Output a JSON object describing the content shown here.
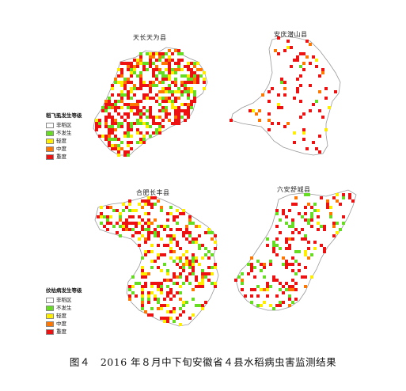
{
  "figure_caption": "图４　2016 年８月中下旬安徽省４县水稻病虫害监测结果",
  "maps": [
    {
      "id": "tianchang",
      "title": "天长天为县",
      "legend": {
        "title": "稻飞虱发生等级",
        "items": [
          {
            "label": "非稻区",
            "color": "#ffffff"
          },
          {
            "label": "不发生",
            "color": "#66dd22"
          },
          {
            "label": "轻度",
            "color": "#ffee00"
          },
          {
            "label": "中度",
            "color": "#ff7700"
          },
          {
            "label": "重度",
            "color": "#ee1111"
          }
        ]
      }
    },
    {
      "id": "shouxian",
      "title": "安庆潜山县"
    },
    {
      "id": "feidong",
      "title": "合肥长丰县",
      "legend": {
        "title": "纹枯病发生等级",
        "items": [
          {
            "label": "非稻区",
            "color": "#ffffff"
          },
          {
            "label": "不发生",
            "color": "#66dd22"
          },
          {
            "label": "轻度",
            "color": "#ffee00"
          },
          {
            "label": "中度",
            "color": "#ff7700"
          },
          {
            "label": "重度",
            "color": "#ee1111"
          }
        ]
      }
    },
    {
      "id": "liuan",
      "title": "六安舒城县"
    }
  ],
  "colors": {
    "none": "#66dd22",
    "light": "#ffee00",
    "medium": "#ff7700",
    "severe": "#ee1111",
    "outline": "#999999"
  }
}
